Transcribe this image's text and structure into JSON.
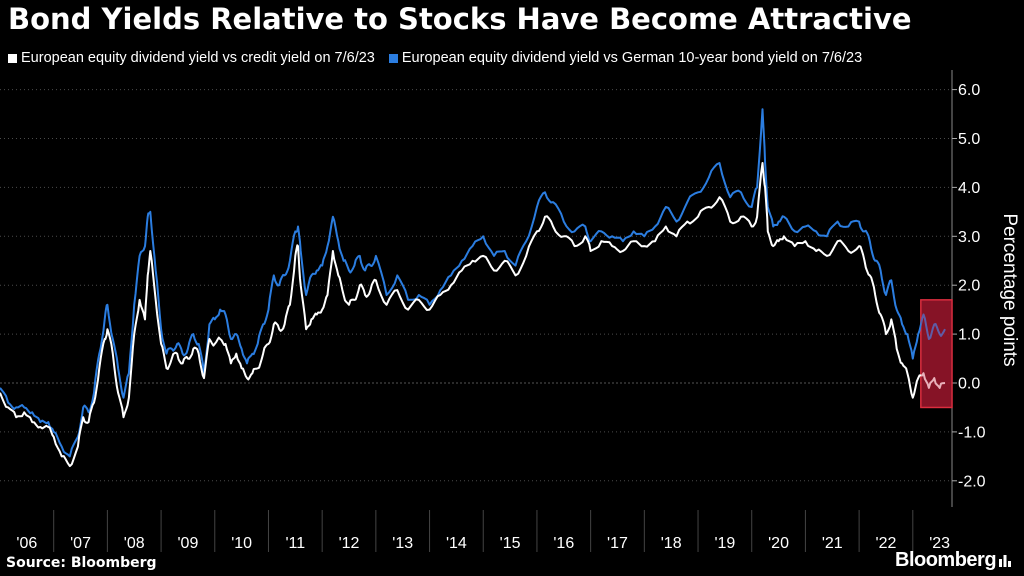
{
  "header": {
    "title": "Bond Yields Relative to Stocks Have Become Attractive"
  },
  "footer": {
    "source": "Source: Bloomberg",
    "brand": "Bloomberg"
  },
  "colors": {
    "background": "#000000",
    "series_white": "#ffffff",
    "series_blue": "#2b7de0",
    "highlight_fill": "#7a0f22",
    "highlight_stroke": "#e03040",
    "grid": "#555555"
  },
  "chart_data": {
    "type": "line",
    "title": "Bond Yields Relative to Stocks Have Become Attractive",
    "xlabel": "",
    "ylabel": "Percentage points",
    "ylim": [
      -2.5,
      6.3
    ],
    "xlim": [
      2006.0,
      2023.73
    ],
    "y_ticks": [
      6.0,
      5.0,
      4.0,
      3.0,
      2.0,
      1.0,
      0.0,
      -1.0,
      -2.0
    ],
    "y_tick_labels": [
      "6.0",
      "5.0",
      "4.0",
      "3.0",
      "2.0",
      "1.0",
      "0.0",
      "-1.0",
      "-2.0"
    ],
    "x_tick_labels": [
      "'06",
      "'07",
      "'08",
      "'09",
      "'10",
      "'11",
      "'12",
      "'13",
      "'14",
      "'15",
      "'16",
      "'17",
      "'18",
      "'19",
      "'20",
      "'21",
      "'22",
      "'23"
    ],
    "grid": true,
    "legend_position": "top-left",
    "highlight_region": {
      "x_start": 2023.15,
      "x_end": 2023.73,
      "y_start": -0.5,
      "y_end": 1.7
    },
    "series": [
      {
        "name": "European equity dividend yield vs credit yield on 7/6/23",
        "color": "white",
        "x": [
          2006.0,
          2006.15,
          2006.3,
          2006.45,
          2006.6,
          2006.75,
          2006.9,
          2007.0,
          2007.15,
          2007.3,
          2007.45,
          2007.55,
          2007.65,
          2007.75,
          2007.85,
          2007.95,
          2008.0,
          2008.1,
          2008.2,
          2008.3,
          2008.4,
          2008.5,
          2008.6,
          2008.7,
          2008.75,
          2008.8,
          2008.9,
          2009.0,
          2009.1,
          2009.2,
          2009.3,
          2009.4,
          2009.5,
          2009.6,
          2009.7,
          2009.8,
          2009.9,
          2010.0,
          2010.1,
          2010.2,
          2010.3,
          2010.4,
          2010.5,
          2010.6,
          2010.7,
          2010.8,
          2010.9,
          2011.0,
          2011.1,
          2011.2,
          2011.3,
          2011.4,
          2011.5,
          2011.55,
          2011.6,
          2011.7,
          2011.8,
          2011.9,
          2012.0,
          2012.1,
          2012.2,
          2012.3,
          2012.4,
          2012.5,
          2012.6,
          2012.7,
          2012.8,
          2012.9,
          2013.0,
          2013.2,
          2013.4,
          2013.6,
          2013.8,
          2014.0,
          2014.2,
          2014.4,
          2014.6,
          2014.8,
          2015.0,
          2015.2,
          2015.4,
          2015.6,
          2015.8,
          2016.0,
          2016.15,
          2016.3,
          2016.5,
          2016.7,
          2016.9,
          2017.0,
          2017.2,
          2017.4,
          2017.6,
          2017.8,
          2018.0,
          2018.2,
          2018.4,
          2018.6,
          2018.8,
          2019.0,
          2019.2,
          2019.4,
          2019.6,
          2019.8,
          2020.0,
          2020.1,
          2020.2,
          2020.25,
          2020.3,
          2020.4,
          2020.5,
          2020.6,
          2020.8,
          2021.0,
          2021.2,
          2021.4,
          2021.6,
          2021.8,
          2022.0,
          2022.1,
          2022.2,
          2022.3,
          2022.4,
          2022.5,
          2022.6,
          2022.7,
          2022.8,
          2022.9,
          2023.0,
          2023.1,
          2023.2,
          2023.3,
          2023.4,
          2023.5,
          2023.6
        ],
        "y": [
          -0.2,
          -0.5,
          -0.7,
          -0.6,
          -0.8,
          -0.9,
          -0.9,
          -1.1,
          -1.5,
          -1.7,
          -1.3,
          -0.7,
          -0.8,
          -0.4,
          0.3,
          0.9,
          1.1,
          0.6,
          -0.2,
          -0.7,
          -0.3,
          1.0,
          1.7,
          1.3,
          2.2,
          2.7,
          1.7,
          0.8,
          0.3,
          0.5,
          0.6,
          0.4,
          0.5,
          0.7,
          0.6,
          0.1,
          0.9,
          0.8,
          0.9,
          0.8,
          0.4,
          0.6,
          0.3,
          0.1,
          0.2,
          0.3,
          0.6,
          0.8,
          1.2,
          1.1,
          1.2,
          1.6,
          2.6,
          2.8,
          2.0,
          1.1,
          1.3,
          1.4,
          1.5,
          1.8,
          2.7,
          2.2,
          1.8,
          1.6,
          1.7,
          2.0,
          1.8,
          1.9,
          2.1,
          1.6,
          1.9,
          1.5,
          1.7,
          1.5,
          1.8,
          2.0,
          2.3,
          2.5,
          2.6,
          2.3,
          2.5,
          2.2,
          2.6,
          3.1,
          3.4,
          3.2,
          3.0,
          2.8,
          3.0,
          2.7,
          2.9,
          2.8,
          2.7,
          2.9,
          2.8,
          2.9,
          3.2,
          3.0,
          3.3,
          3.4,
          3.6,
          3.8,
          3.3,
          3.4,
          3.2,
          3.4,
          4.5,
          4.0,
          3.1,
          2.8,
          2.9,
          3.0,
          2.8,
          2.9,
          2.7,
          2.6,
          2.9,
          2.7,
          2.8,
          2.5,
          2.2,
          1.8,
          1.4,
          1.0,
          1.3,
          0.7,
          0.4,
          0.2,
          -0.3,
          0.1,
          0.2,
          -0.1,
          0.1,
          -0.1,
          0.0
        ]
      },
      {
        "name": "European equity dividend yield vs German 10-year bond yield on 7/6/23",
        "color": "blue",
        "x": [
          2006.0,
          2006.15,
          2006.3,
          2006.45,
          2006.6,
          2006.75,
          2006.9,
          2007.0,
          2007.15,
          2007.3,
          2007.45,
          2007.55,
          2007.65,
          2007.75,
          2007.85,
          2007.95,
          2008.0,
          2008.1,
          2008.2,
          2008.3,
          2008.4,
          2008.5,
          2008.6,
          2008.7,
          2008.75,
          2008.8,
          2008.9,
          2009.0,
          2009.1,
          2009.2,
          2009.3,
          2009.4,
          2009.5,
          2009.6,
          2009.7,
          2009.8,
          2009.9,
          2010.0,
          2010.1,
          2010.2,
          2010.3,
          2010.4,
          2010.5,
          2010.6,
          2010.7,
          2010.8,
          2010.9,
          2011.0,
          2011.1,
          2011.2,
          2011.3,
          2011.4,
          2011.5,
          2011.55,
          2011.6,
          2011.7,
          2011.8,
          2011.9,
          2012.0,
          2012.1,
          2012.2,
          2012.3,
          2012.4,
          2012.5,
          2012.6,
          2012.7,
          2012.8,
          2012.9,
          2013.0,
          2013.2,
          2013.4,
          2013.6,
          2013.8,
          2014.0,
          2014.2,
          2014.4,
          2014.6,
          2014.8,
          2015.0,
          2015.2,
          2015.4,
          2015.6,
          2015.8,
          2016.0,
          2016.15,
          2016.3,
          2016.5,
          2016.7,
          2016.9,
          2017.0,
          2017.2,
          2017.4,
          2017.6,
          2017.8,
          2018.0,
          2018.2,
          2018.4,
          2018.6,
          2018.8,
          2019.0,
          2019.2,
          2019.4,
          2019.6,
          2019.8,
          2020.0,
          2020.1,
          2020.2,
          2020.25,
          2020.3,
          2020.4,
          2020.5,
          2020.6,
          2020.8,
          2021.0,
          2021.2,
          2021.4,
          2021.6,
          2021.8,
          2022.0,
          2022.1,
          2022.2,
          2022.3,
          2022.4,
          2022.5,
          2022.6,
          2022.7,
          2022.8,
          2022.9,
          2023.0,
          2023.1,
          2023.2,
          2023.3,
          2023.4,
          2023.5,
          2023.6
        ],
        "y": [
          -0.1,
          -0.4,
          -0.5,
          -0.5,
          -0.6,
          -0.8,
          -0.8,
          -1.0,
          -1.3,
          -1.5,
          -1.1,
          -0.5,
          -0.6,
          -0.2,
          0.6,
          1.3,
          1.6,
          0.9,
          0.3,
          -0.3,
          0.2,
          1.6,
          2.6,
          2.8,
          3.4,
          3.5,
          2.3,
          1.1,
          0.6,
          0.7,
          0.8,
          0.6,
          0.7,
          1.0,
          0.8,
          0.2,
          1.2,
          1.3,
          1.5,
          1.4,
          0.9,
          1.0,
          0.7,
          0.4,
          0.6,
          0.8,
          1.2,
          1.5,
          2.2,
          2.0,
          2.2,
          2.5,
          3.1,
          3.2,
          2.7,
          1.8,
          2.2,
          2.3,
          2.4,
          2.8,
          3.4,
          2.9,
          2.5,
          2.3,
          2.4,
          2.6,
          2.3,
          2.4,
          2.6,
          1.8,
          2.2,
          1.7,
          1.8,
          1.6,
          1.9,
          2.2,
          2.5,
          2.8,
          3.0,
          2.6,
          2.7,
          2.4,
          2.9,
          3.6,
          3.9,
          3.7,
          3.3,
          3.1,
          3.2,
          2.9,
          3.1,
          3.0,
          2.9,
          3.1,
          3.0,
          3.2,
          3.6,
          3.3,
          3.7,
          3.9,
          4.2,
          4.5,
          3.8,
          3.9,
          3.6,
          4.0,
          5.6,
          4.5,
          3.6,
          3.2,
          3.3,
          3.4,
          3.1,
          3.2,
          3.1,
          3.0,
          3.3,
          3.2,
          3.3,
          3.1,
          2.9,
          2.5,
          2.3,
          1.8,
          2.1,
          1.5,
          1.2,
          1.0,
          0.5,
          1.0,
          1.4,
          0.9,
          1.2,
          1.0,
          1.1
        ]
      }
    ]
  }
}
